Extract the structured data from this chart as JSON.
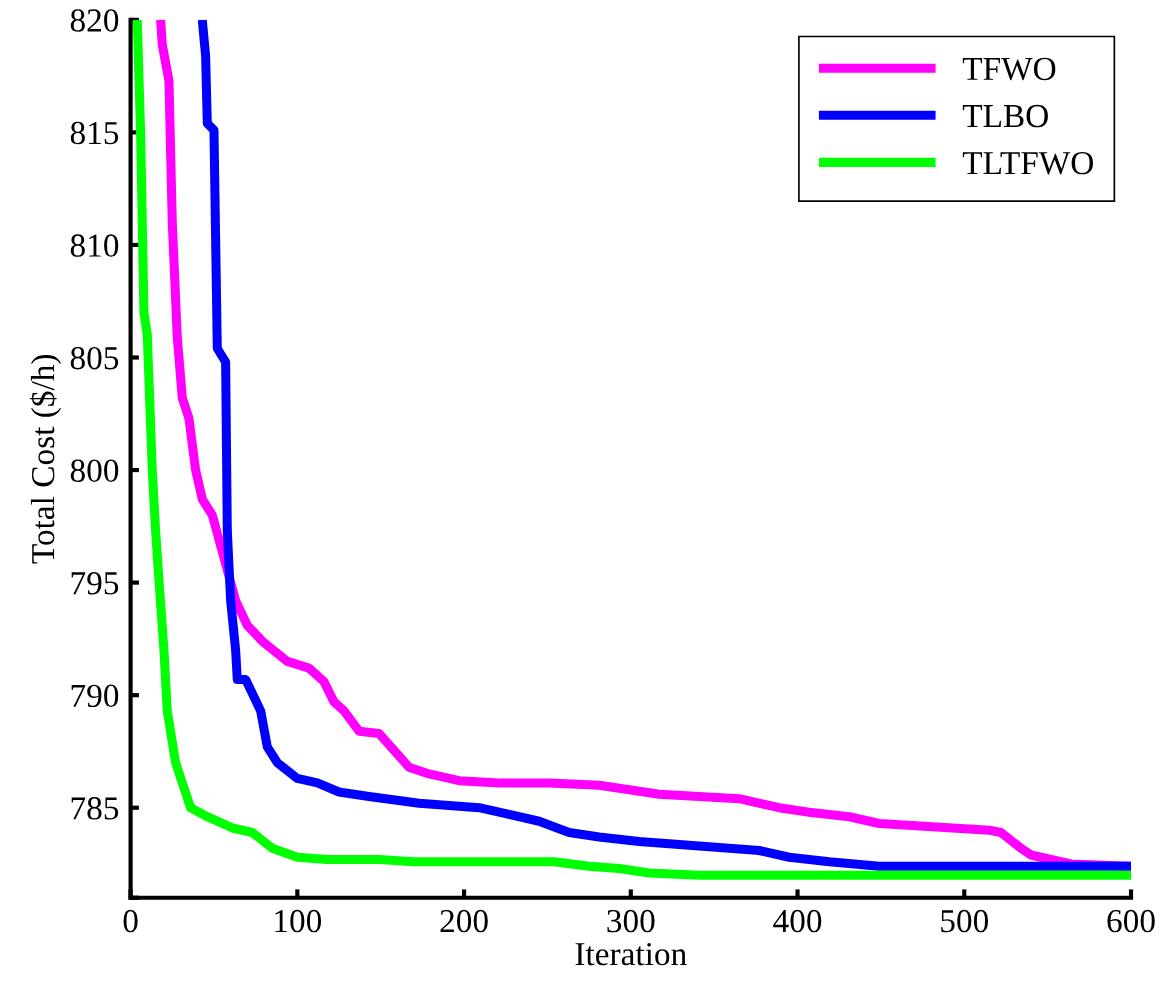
{
  "chart_data": {
    "type": "line",
    "xlabel": "Iteration",
    "ylabel": "Total Cost ($/h)",
    "xlim": [
      0,
      600
    ],
    "xticks": [
      0,
      100,
      200,
      300,
      400,
      500,
      600
    ],
    "ylim": [
      781,
      820
    ],
    "yticks": [
      {
        "value": 781,
        "label": null
      },
      785,
      790,
      795,
      800,
      805,
      810,
      815,
      820
    ],
    "grid": false,
    "legend": "top right",
    "line_style": "solid",
    "marker": "none",
    "series": [
      {
        "name": "TFWO",
        "color": "#ff00ff",
        "x": [
          18,
          19,
          23,
          25,
          28,
          31,
          35,
          39,
          43,
          49,
          63,
          70,
          79,
          94,
          107,
          116,
          122,
          128,
          137,
          149,
          167,
          179,
          197,
          221,
          251,
          281,
          299,
          317,
          341,
          365,
          389,
          407,
          431,
          449,
          515,
          522,
          534,
          540,
          558,
          564,
          600
        ],
        "values": [
          820,
          818.9,
          817.3,
          811,
          805.9,
          803.2,
          802.3,
          800,
          798.7,
          798,
          794.2,
          793.1,
          792.4,
          791.5,
          791.2,
          790.6,
          789.7,
          789.3,
          788.4,
          788.3,
          786.8,
          786.5,
          786.2,
          786.1,
          786.1,
          786,
          785.8,
          785.6,
          785.5,
          785.4,
          785,
          784.8,
          784.6,
          784.3,
          784,
          783.9,
          783.2,
          782.9,
          782.6,
          782.5,
          782.4
        ]
      },
      {
        "name": "TLBO",
        "color": "#0000ff",
        "x": [
          43,
          45,
          46,
          50,
          52,
          57,
          58,
          60,
          63,
          64,
          69,
          78,
          82,
          88,
          100,
          112,
          125,
          143,
          173,
          209,
          221,
          245,
          263,
          281,
          305,
          341,
          377,
          395,
          419,
          449,
          600
        ],
        "values": [
          820,
          818.4,
          815.4,
          815.1,
          805.4,
          804.8,
          797.3,
          794.2,
          792,
          790.7,
          790.7,
          789.3,
          787.7,
          787,
          786.3,
          786.1,
          785.7,
          785.5,
          785.2,
          785,
          784.8,
          784.4,
          783.9,
          783.7,
          783.5,
          783.3,
          783.1,
          782.8,
          782.6,
          782.4,
          782.4
        ]
      },
      {
        "name": "TLTFWO",
        "color": "#00ff00",
        "x": [
          4,
          6,
          8,
          10,
          13,
          15,
          17,
          20,
          22,
          27,
          31,
          36,
          46,
          61,
          73,
          85,
          100,
          118,
          149,
          170,
          254,
          275,
          293,
          311,
          341,
          600
        ],
        "values": [
          820,
          815,
          807,
          806,
          800,
          797.3,
          795.1,
          792,
          789.3,
          787,
          786.1,
          785,
          784.6,
          784.1,
          783.9,
          783.2,
          782.8,
          782.7,
          782.7,
          782.6,
          782.6,
          782.4,
          782.3,
          782.1,
          782,
          782
        ]
      }
    ]
  }
}
